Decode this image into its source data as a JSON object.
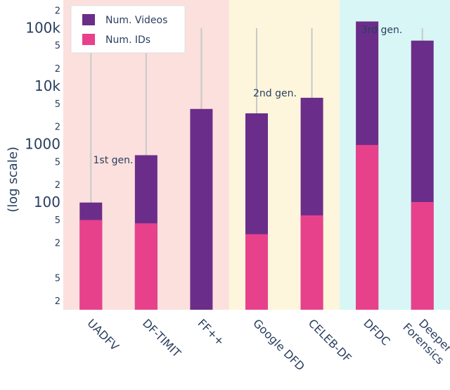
{
  "chart_data": {
    "type": "bar",
    "barmode": "overlay",
    "categories": [
      "UADFV",
      "DF-TIMIT",
      "FF++",
      "Google DFD",
      "CELEB-DF",
      "DFDC",
      "Deeper Forensics"
    ],
    "category_lines": [
      [
        "UADFV"
      ],
      [
        "DF-TIMIT"
      ],
      [
        "FF++"
      ],
      [
        "Google DFD"
      ],
      [
        "CELEB-DF"
      ],
      [
        "DFDC"
      ],
      [
        "Deeper",
        "Forensics"
      ]
    ],
    "series": [
      {
        "name": "Num. Videos",
        "color": "#6b2d8a",
        "values": [
          98,
          640,
          4000,
          3363,
          6229,
          128154,
          60000
        ]
      },
      {
        "name": "Num. IDs",
        "color": "#e8418c",
        "values": [
          49,
          43,
          1,
          28,
          59,
          960,
          100
        ]
      }
    ],
    "ylabel": "(log scale)",
    "yscale": "log",
    "ylim": [
      1.4,
      300000
    ],
    "major_ticks": [
      {
        "value": 100,
        "label": "100"
      },
      {
        "value": 1000,
        "label": "1000"
      },
      {
        "value": 10000,
        "label": "10k"
      },
      {
        "value": 100000,
        "label": "100k"
      }
    ],
    "minor_ticks": [
      {
        "value": 2,
        "label": "2"
      },
      {
        "value": 5,
        "label": "5"
      },
      {
        "value": 20,
        "label": "2"
      },
      {
        "value": 50,
        "label": "5"
      },
      {
        "value": 200,
        "label": "2"
      },
      {
        "value": 500,
        "label": "5"
      },
      {
        "value": 2000,
        "label": "2"
      },
      {
        "value": 5000,
        "label": "5"
      },
      {
        "value": 20000,
        "label": "2"
      },
      {
        "value": 50000,
        "label": "5"
      },
      {
        "value": 200000,
        "label": "2"
      }
    ],
    "generations": [
      {
        "label": "1st gen.",
        "first_category": 0,
        "last_category": 2,
        "color": "#fbe0dd"
      },
      {
        "label": "2nd gen.",
        "first_category": 3,
        "last_category": 4,
        "color": "#fdf6dc"
      },
      {
        "label": "3rd gen.",
        "first_category": 5,
        "last_category": 6,
        "color": "#d9f6f6"
      }
    ],
    "legend_position": "top-left",
    "grid": "vertical"
  }
}
